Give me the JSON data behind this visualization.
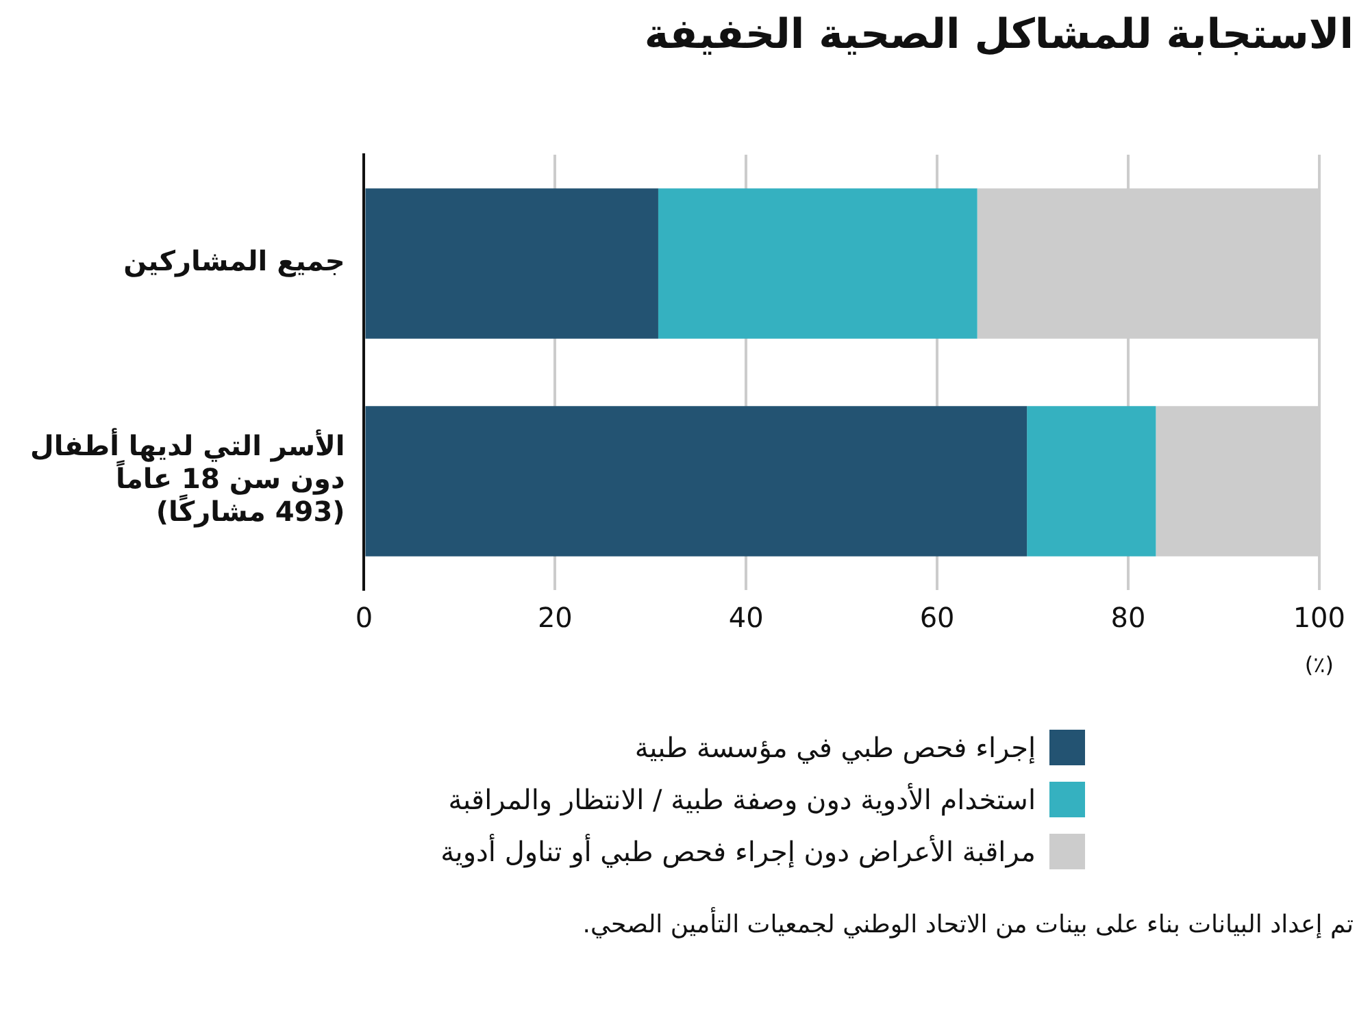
{
  "chart_data": {
    "type": "bar",
    "orientation": "horizontal",
    "stacked": true,
    "title": "الاستجابة للمشاكل الصحية الخفيفة",
    "xlabel": "(٪)",
    "categories": [
      "جميع المشاركين",
      "الأسر التي لديها أطفال\nدون سن 18 عاماً\n(493 مشاركًا)"
    ],
    "series": [
      {
        "name": "إجراء فحص طبي في مؤسسة طبية",
        "color": "#235372",
        "values": [
          30.8,
          69.4
        ]
      },
      {
        "name": "استخدام الأدوية دون وصفة طبية / الانتظار والمراقبة",
        "color": "#35b1c0",
        "values": [
          33.4,
          13.5
        ]
      },
      {
        "name": "مراقبة الأعراض دون إجراء فحص طبي أو تناول أدوية",
        "color": "#cccccc",
        "values": [
          35.8,
          17.1
        ]
      }
    ],
    "xlim": [
      0,
      100
    ],
    "xticks": [
      0,
      20,
      40,
      60,
      80,
      100
    ],
    "grid": "x",
    "legend": "bottom",
    "annotations": [
      "تم إعداد البيانات بناء على بينات من الاتحاد الوطني لجمعيات التأمين الصحي."
    ]
  }
}
